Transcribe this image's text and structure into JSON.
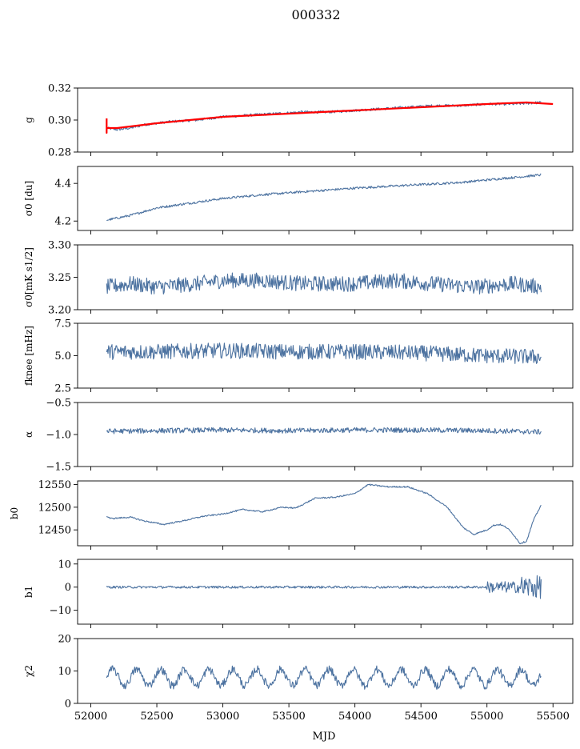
{
  "figure_title": "000332",
  "x_axis": {
    "label": "MJD",
    "xlim": [
      51900,
      55650
    ],
    "ticks": [
      52000,
      52500,
      53000,
      53500,
      54000,
      54500,
      55000,
      55500
    ],
    "tick_labels": [
      "52000",
      "52500",
      "53000",
      "53500",
      "54000",
      "54500",
      "55000",
      "55500"
    ],
    "data_start": 52120,
    "data_end": 55410
  },
  "colors": {
    "series": "#4c72a0",
    "fit": "#ff0000",
    "axes": "#000000"
  },
  "chart_data": [
    {
      "type": "line",
      "ylabel": "g",
      "ylim": [
        0.28,
        0.32
      ],
      "yticks": [
        0.28,
        0.3,
        0.32
      ],
      "ytick_labels": [
        "0.28",
        "0.30",
        "0.32"
      ],
      "series": [
        {
          "x": [
            52120,
            52200,
            52300,
            52400,
            52500,
            52600,
            52800,
            53000,
            53200,
            53400,
            53600,
            53800,
            54000,
            54200,
            54400,
            54600,
            54800,
            55000,
            55200,
            55410
          ],
          "values": [
            0.295,
            0.294,
            0.295,
            0.297,
            0.298,
            0.299,
            0.3,
            0.302,
            0.303,
            0.304,
            0.305,
            0.305,
            0.306,
            0.307,
            0.308,
            0.309,
            0.309,
            0.31,
            0.31,
            0.311
          ],
          "noise": 0.0008
        },
        {
          "x": [
            52120,
            52200,
            52500,
            53000,
            53500,
            54000,
            54500,
            55000,
            55300,
            55500
          ],
          "values": [
            0.295,
            0.295,
            0.298,
            0.302,
            0.304,
            0.306,
            0.308,
            0.31,
            0.311,
            0.31
          ],
          "style": "fit"
        }
      ]
    },
    {
      "type": "line",
      "ylabel": "σ0 [du]",
      "ylim": [
        4.15,
        4.49
      ],
      "yticks": [
        4.2,
        4.4
      ],
      "ytick_labels": [
        "4.2",
        "4.4"
      ],
      "series": [
        {
          "x": [
            52120,
            52300,
            52500,
            52800,
            53000,
            53300,
            53600,
            54000,
            54400,
            54800,
            55100,
            55410
          ],
          "values": [
            4.205,
            4.23,
            4.27,
            4.3,
            4.32,
            4.34,
            4.355,
            4.375,
            4.39,
            4.405,
            4.425,
            4.445
          ],
          "noise": 0.006
        }
      ]
    },
    {
      "type": "line",
      "ylabel": "σ0[mK s1/2]",
      "ylim": [
        3.2,
        3.3
      ],
      "yticks": [
        3.2,
        3.25,
        3.3
      ],
      "ytick_labels": [
        "3.20",
        "3.25",
        "3.30"
      ],
      "series": [
        {
          "x": [
            52120,
            52300,
            52500,
            52800,
            53000,
            53300,
            53600,
            54000,
            54300,
            54600,
            54900,
            55200,
            55410
          ],
          "values": [
            3.235,
            3.24,
            3.235,
            3.24,
            3.245,
            3.245,
            3.24,
            3.24,
            3.245,
            3.24,
            3.235,
            3.24,
            3.235
          ],
          "noise": 0.012
        }
      ]
    },
    {
      "type": "line",
      "ylabel": "fknee [mHz]",
      "ylim": [
        2.5,
        7.5
      ],
      "yticks": [
        2.5,
        5.0,
        7.5
      ],
      "ytick_labels": [
        "2.5",
        "5.0",
        "7.5"
      ],
      "series": [
        {
          "x": [
            52120,
            52500,
            53000,
            53500,
            54000,
            54500,
            55000,
            55410
          ],
          "values": [
            5.3,
            5.3,
            5.4,
            5.3,
            5.3,
            5.2,
            5.0,
            4.9
          ],
          "noise": 0.6
        }
      ]
    },
    {
      "type": "line",
      "ylabel": "α",
      "ylim": [
        -1.5,
        -0.5
      ],
      "yticks": [
        -1.5,
        -1.0,
        -0.5
      ],
      "ytick_labels": [
        "−1.5",
        "−1.0",
        "−0.5"
      ],
      "series": [
        {
          "x": [
            52120,
            52500,
            53000,
            53500,
            54000,
            54500,
            55000,
            55410
          ],
          "values": [
            -0.95,
            -0.94,
            -0.93,
            -0.94,
            -0.93,
            -0.93,
            -0.94,
            -0.96
          ],
          "noise": 0.04
        }
      ]
    },
    {
      "type": "line",
      "ylabel": "b0",
      "ylim": [
        12415,
        12558
      ],
      "yticks": [
        12450,
        12500,
        12550
      ],
      "ytick_labels": [
        "12450",
        "12500",
        "12550"
      ],
      "series": [
        {
          "x": [
            52120,
            52150,
            52300,
            52400,
            52550,
            52700,
            52850,
            53000,
            53150,
            53300,
            53450,
            53550,
            53700,
            53850,
            54000,
            54100,
            54250,
            54400,
            54550,
            54700,
            54820,
            54900,
            55000,
            55050,
            55100,
            55150,
            55200,
            55250,
            55300,
            55350,
            55410
          ],
          "values": [
            12480,
            12475,
            12478,
            12470,
            12462,
            12470,
            12480,
            12485,
            12495,
            12490,
            12500,
            12498,
            12520,
            12522,
            12530,
            12550,
            12545,
            12545,
            12530,
            12500,
            12455,
            12440,
            12450,
            12460,
            12462,
            12455,
            12440,
            12420,
            12425,
            12470,
            12505
          ],
          "noise": 1.5
        }
      ]
    },
    {
      "type": "line",
      "ylabel": "b1",
      "ylim": [
        -16,
        12
      ],
      "yticks": [
        -10,
        0,
        10
      ],
      "ytick_labels": [
        "−10",
        "0",
        "10"
      ],
      "series": [
        {
          "x": [
            52120,
            52500,
            53000,
            53500,
            54000,
            54500,
            54900,
            55000,
            55100,
            55200,
            55300,
            55410
          ],
          "values": [
            0,
            0,
            0,
            0,
            0,
            0,
            0,
            0,
            0,
            0,
            0,
            0
          ],
          "noise": 0.5
        }
      ]
    },
    {
      "type": "line",
      "ylabel": "χ2",
      "ylim": [
        0,
        20
      ],
      "yticks": [
        0,
        10,
        20
      ],
      "ytick_labels": [
        "0",
        "10",
        "20"
      ],
      "series": [
        {
          "x": [
            52120,
            52500,
            53000,
            53500,
            54000,
            54500,
            55000,
            55410
          ],
          "values": [
            8,
            8,
            8,
            8,
            8,
            8,
            8,
            8
          ],
          "noise": 1.2,
          "oscillation": {
            "amplitude": 2.5,
            "period_days": 182
          }
        }
      ]
    }
  ]
}
